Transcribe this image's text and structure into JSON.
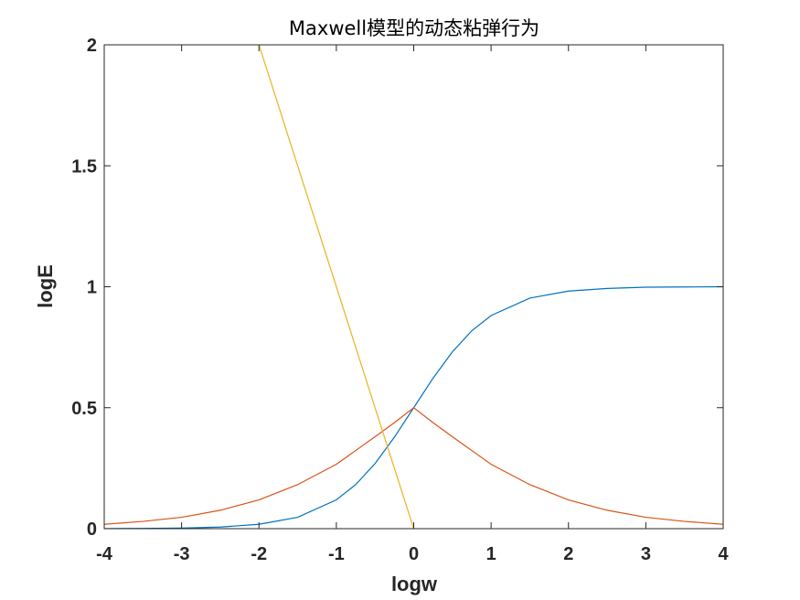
{
  "chart_data": {
    "type": "line",
    "title": "Maxwell模型的动态粘弹行为",
    "xlabel": "logw",
    "ylabel": "logE",
    "xlim": [
      -4,
      4
    ],
    "ylim": [
      0,
      2
    ],
    "xticks": [
      -4,
      -3,
      -2,
      -1,
      0,
      1,
      2,
      3,
      4
    ],
    "yticks": [
      0,
      0.5,
      1,
      1.5,
      2
    ],
    "xtick_labels": [
      "-4",
      "-3",
      "-2",
      "-1",
      "0",
      "1",
      "2",
      "3",
      "4"
    ],
    "ytick_labels": [
      "0",
      "0.5",
      "1",
      "1.5",
      "2"
    ],
    "grid": false,
    "box": true,
    "series": [
      {
        "color": "#0072BD",
        "x": [
          -4,
          -3.5,
          -3,
          -2.5,
          -2,
          -1.5,
          -1,
          -0.75,
          -0.5,
          -0.25,
          0,
          0.25,
          0.5,
          0.75,
          1,
          1.5,
          2,
          2.5,
          3,
          3.5,
          4
        ],
        "y": [
          0.0003,
          0.001,
          0.0025,
          0.0067,
          0.018,
          0.047,
          0.119,
          0.182,
          0.269,
          0.378,
          0.5,
          0.622,
          0.731,
          0.818,
          0.881,
          0.953,
          0.982,
          0.993,
          0.998,
          0.999,
          1.0
        ]
      },
      {
        "color": "#D95319",
        "x": [
          -4,
          -3.5,
          -3,
          -2.5,
          -2,
          -1.5,
          -1,
          -0.75,
          -0.5,
          -0.25,
          0,
          0.25,
          0.5,
          0.75,
          1,
          1.5,
          2,
          2.5,
          3,
          3.5,
          4
        ],
        "y": [
          0.018,
          0.03,
          0.047,
          0.076,
          0.119,
          0.182,
          0.266,
          0.323,
          0.38,
          0.438,
          0.5,
          0.438,
          0.38,
          0.323,
          0.266,
          0.182,
          0.119,
          0.076,
          0.047,
          0.03,
          0.018
        ]
      },
      {
        "color": "#EDB120",
        "x": [
          -2,
          0
        ],
        "y": [
          2,
          0
        ]
      }
    ]
  }
}
